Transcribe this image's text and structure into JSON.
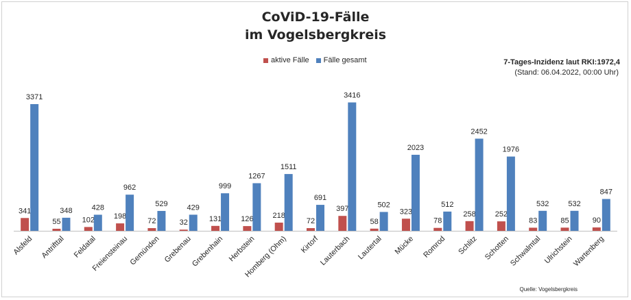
{
  "chart_data": {
    "type": "bar",
    "title": "CoViD-19-Fälle",
    "subtitle": "im Vogelsbergkreis",
    "categories": [
      "Alsfeld",
      "Antrifttal",
      "Feldatal",
      "Freiensteinau",
      "Gemünden",
      "Grebenau",
      "Grebenhain",
      "Herbstein",
      "Homberg (Ohm)",
      "Kirtorf",
      "Lauterbach",
      "Lautertal",
      "Mücke",
      "Romrod",
      "Schlitz",
      "Schotten",
      "Schwalmtal",
      "Ulrichstein",
      "Wartenberg"
    ],
    "series": [
      {
        "name": "aktive Fälle",
        "color": "#c0504d",
        "values": [
          341,
          55,
          102,
          198,
          72,
          32,
          131,
          126,
          218,
          72,
          397,
          58,
          323,
          78,
          258,
          252,
          83,
          85,
          90
        ]
      },
      {
        "name": "Fälle gesamt",
        "color": "#4f81bd",
        "values": [
          3371,
          348,
          428,
          962,
          529,
          429,
          999,
          1267,
          1511,
          691,
          3416,
          502,
          2023,
          512,
          2452,
          1976,
          532,
          532,
          847
        ]
      }
    ],
    "ylim": [
      0,
      3500
    ],
    "grid": false,
    "legend": "top",
    "data_labels": true
  },
  "note_incidence": "7-Tages-Inzidenz laut RKI:1972,4",
  "note_stand": "(Stand: 06.04.2022, 00:00 Uhr)",
  "source": "Quelle: Vogelsbergkreis"
}
